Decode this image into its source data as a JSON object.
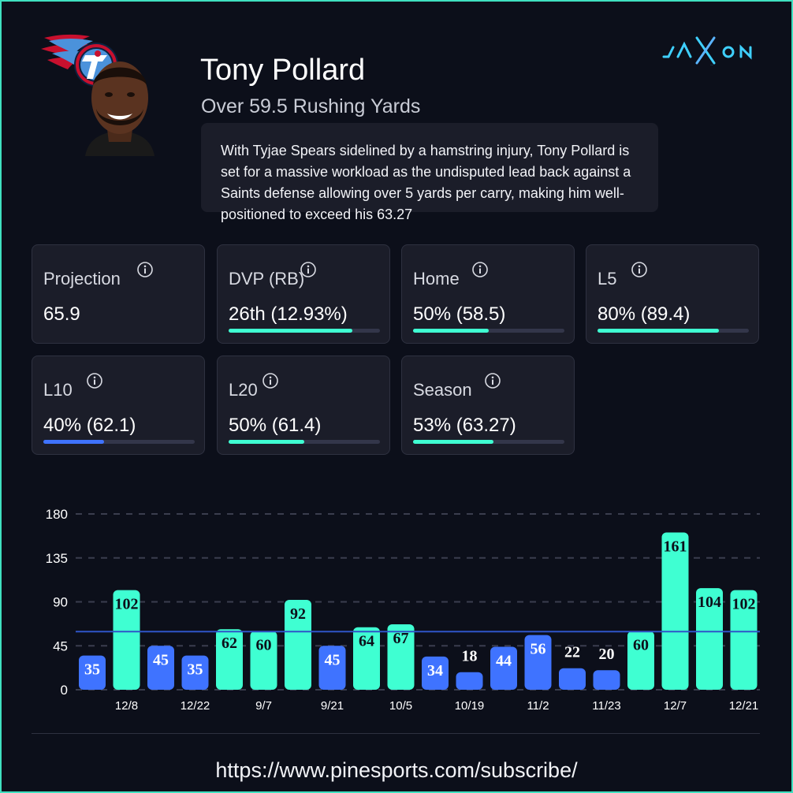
{
  "player": {
    "name": "Tony Pollard",
    "prop": "Over 59.5 Rushing Yards",
    "blurb": "With Tyjae Spears sidelined by a hamstring injury, Tony Pollard is set for a massive workload as the undisputed lead back against a Saints defense allowing over 5 yards per carry, making him well-positioned to exceed his 63.27"
  },
  "brand": {
    "text": "JAXON"
  },
  "colors": {
    "teal": "#3fffd2",
    "blue": "#3f73ff",
    "line": "#2f55c8"
  },
  "stats": [
    {
      "label": "Projection",
      "value": "65.9",
      "bar": null
    },
    {
      "label": "DVP (RB)",
      "value": "26th (12.93%)",
      "bar": 0.82,
      "color": "#3fffd2"
    },
    {
      "label": "Home",
      "value": "50% (58.5)",
      "bar": 0.5,
      "color": "#3fffd2"
    },
    {
      "label": "L5",
      "value": "80% (89.4)",
      "bar": 0.8,
      "color": "#3fffd2"
    },
    {
      "label": "L10",
      "value": "40% (62.1)",
      "bar": 0.4,
      "color": "#3f73ff"
    },
    {
      "label": "L20",
      "value": "50% (61.4)",
      "bar": 0.5,
      "color": "#3fffd2"
    },
    {
      "label": "Season",
      "value": "53% (63.27)",
      "bar": 0.53,
      "color": "#3fffd2"
    }
  ],
  "chart_data": {
    "type": "bar",
    "values": [
      35,
      102,
      45,
      35,
      62,
      60,
      92,
      45,
      64,
      67,
      34,
      18,
      44,
      56,
      22,
      20,
      60,
      161,
      104,
      102
    ],
    "tick_labels": [
      "12/8",
      "12/22",
      "9/7",
      "9/21",
      "10/5",
      "10/19",
      "11/2",
      "11/23",
      "12/7",
      "12/21"
    ],
    "tick_positions": [
      1,
      3,
      5,
      7,
      9,
      11,
      13,
      15,
      17,
      19
    ],
    "y_ticks": [
      0,
      45,
      90,
      135,
      180
    ],
    "ylim": [
      0,
      180
    ],
    "line": 59.5,
    "grid": true,
    "colors": {
      "over": "#3fffd2",
      "under": "#3f73ff"
    }
  },
  "footer": {
    "url": "https://www.pinesports.com/subscribe/"
  }
}
